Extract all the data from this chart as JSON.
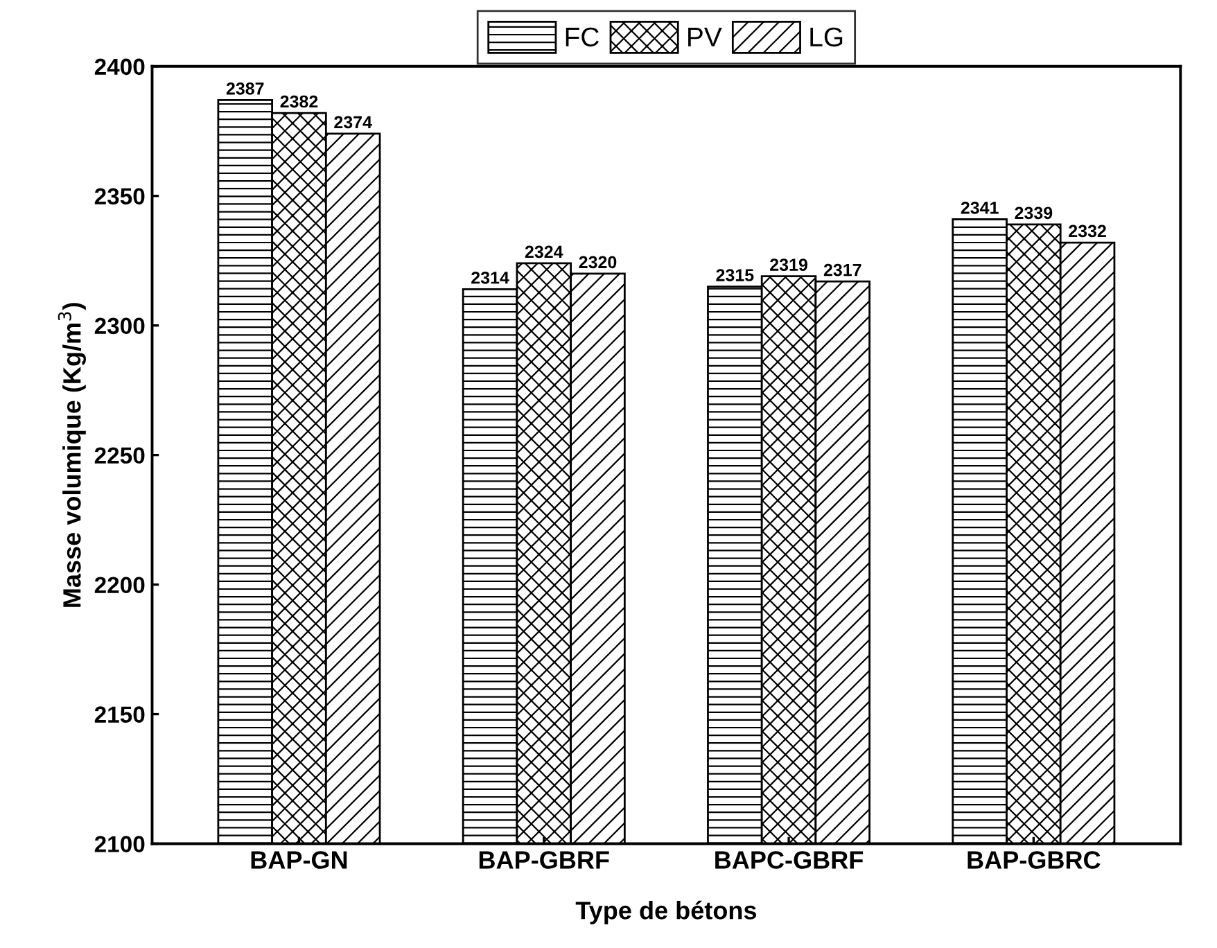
{
  "chart_data": {
    "type": "bar",
    "xlabel": "Type de bétons",
    "ylabel": "Masse volumique (Kg/m$^{3}$)",
    "categories": [
      "BAP-GN",
      "BAP-GBRF",
      "BAPC-GBRF",
      "BAP-GBRC"
    ],
    "series": [
      {
        "name": "FC",
        "color": "#000000",
        "values": [
          2387,
          2314,
          2315,
          2341
        ]
      },
      {
        "name": "PV",
        "color": "#000000",
        "values": [
          2382,
          2324,
          2319,
          2339
        ]
      },
      {
        "name": "LG",
        "color": "#000000",
        "values": [
          2374,
          2320,
          2317,
          2332
        ]
      }
    ],
    "ylim": [
      2100,
      2400
    ],
    "yticks": [
      2100,
      2150,
      2200,
      2250,
      2300,
      2350,
      2400
    ],
    "data_labels": true,
    "legend": "top",
    "grid": false
  }
}
